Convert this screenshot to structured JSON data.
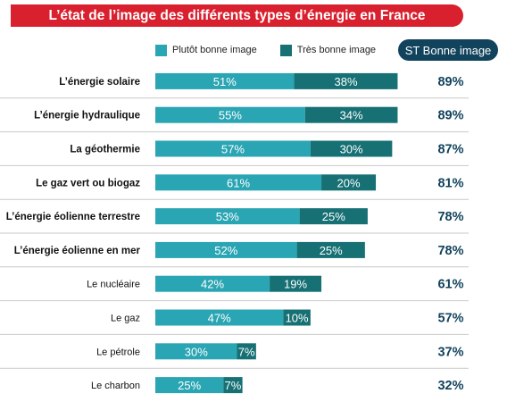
{
  "title": "L’état de l’image des différents types d’énergie en France",
  "colors": {
    "title_bg": "#d9202e",
    "plutot": "#2aa5b3",
    "tres": "#167074",
    "st_header_bg": "#12435d",
    "st_text": "#12435d",
    "separator": "#c9c9c9"
  },
  "legend": {
    "plutot": "Plutôt bonne image",
    "tres": "Très bonne image"
  },
  "st_header": "ST Bonne image",
  "chart_data": {
    "type": "bar",
    "orientation": "horizontal",
    "stacked": true,
    "title": "L’état de l’image des différents types d’énergie en France",
    "categories": [
      "L’énergie solaire",
      "L’énergie hydraulique",
      "La géothermie",
      "Le gaz vert ou biogaz",
      "L’énergie éolienne terrestre",
      "L’énergie éolienne en mer",
      "Le nucléaire",
      "Le gaz",
      "Le pétrole",
      "Le charbon"
    ],
    "bold": [
      true,
      true,
      true,
      true,
      true,
      true,
      false,
      false,
      false,
      false
    ],
    "series": [
      {
        "name": "Plutôt bonne image",
        "values": [
          51,
          55,
          57,
          61,
          53,
          52,
          42,
          47,
          30,
          25
        ]
      },
      {
        "name": "Très bonne image",
        "values": [
          38,
          34,
          30,
          20,
          25,
          25,
          19,
          10,
          7,
          7
        ]
      }
    ],
    "totals": [
      89,
      89,
      87,
      81,
      78,
      78,
      61,
      57,
      37,
      32
    ],
    "value_suffix": "%",
    "xlim": [
      0,
      100
    ]
  }
}
